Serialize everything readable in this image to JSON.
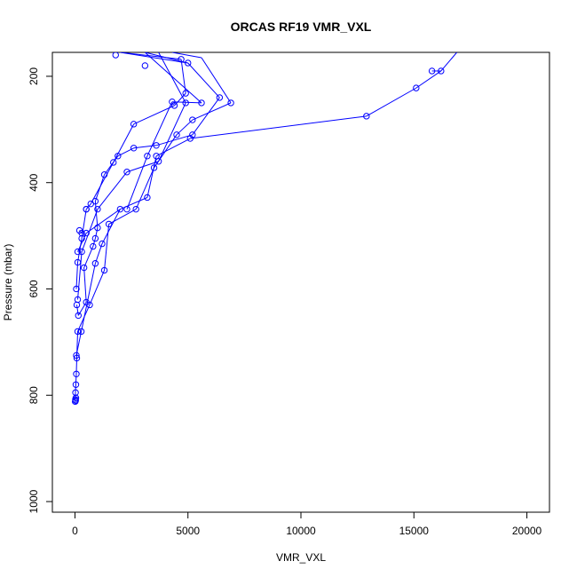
{
  "chart_data": {
    "type": "line",
    "title": "ORCAS RF19 VMR_VXL",
    "xlabel": "VMR_VXL",
    "ylabel": "Pressure (mbar)",
    "xlim": [
      -1000,
      21000
    ],
    "ylim": [
      1020,
      155
    ],
    "y_reversed": true,
    "grid": false,
    "x_ticks": [
      0,
      5000,
      10000,
      15000,
      20000
    ],
    "y_ticks": [
      200,
      400,
      600,
      800,
      1000
    ],
    "series_color": "#0000ff",
    "points": [
      [
        10,
        812
      ],
      [
        20,
        808
      ],
      [
        30,
        810
      ],
      [
        40,
        805
      ],
      [
        25,
        795
      ],
      [
        40,
        780
      ],
      [
        60,
        760
      ],
      [
        80,
        730
      ],
      [
        60,
        725
      ],
      [
        120,
        680
      ],
      [
        280,
        680
      ],
      [
        150,
        650
      ],
      [
        650,
        630
      ],
      [
        500,
        625
      ],
      [
        120,
        620
      ],
      [
        80,
        630
      ],
      [
        60,
        600
      ],
      [
        1300,
        565
      ],
      [
        900,
        552
      ],
      [
        400,
        560
      ],
      [
        120,
        550
      ],
      [
        300,
        530
      ],
      [
        120,
        530
      ],
      [
        800,
        520
      ],
      [
        1200,
        515
      ],
      [
        300,
        505
      ],
      [
        300,
        495
      ],
      [
        900,
        505
      ],
      [
        500,
        495
      ],
      [
        1500,
        478
      ],
      [
        1000,
        485
      ],
      [
        200,
        490
      ],
      [
        500,
        450
      ],
      [
        1000,
        450
      ],
      [
        2000,
        450
      ],
      [
        2700,
        450
      ],
      [
        3200,
        428
      ],
      [
        2300,
        450
      ],
      [
        500,
        450
      ],
      [
        900,
        435
      ],
      [
        700,
        440
      ],
      [
        1300,
        385
      ],
      [
        2300,
        380
      ],
      [
        3500,
        372
      ],
      [
        3200,
        350
      ],
      [
        1700,
        362
      ],
      [
        1900,
        350
      ],
      [
        3600,
        350
      ],
      [
        3700,
        360
      ],
      [
        2600,
        335
      ],
      [
        3600,
        330
      ],
      [
        4500,
        310
      ],
      [
        5200,
        310
      ],
      [
        5100,
        317
      ],
      [
        2600,
        290
      ],
      [
        5200,
        282
      ],
      [
        12900,
        275
      ],
      [
        4400,
        255
      ],
      [
        4900,
        250
      ],
      [
        4300,
        248
      ],
      [
        5600,
        250
      ],
      [
        6900,
        250
      ],
      [
        6400,
        240
      ],
      [
        4900,
        232
      ],
      [
        15100,
        222
      ],
      [
        15800,
        190
      ],
      [
        16200,
        190
      ],
      [
        5000,
        175
      ],
      [
        4700,
        168
      ],
      [
        3100,
        180
      ],
      [
        1800,
        160
      ]
    ],
    "segments": [
      [
        [
          10,
          812
        ],
        [
          20,
          795
        ]
      ],
      [
        [
          20,
          795
        ],
        [
          60,
          760
        ]
      ],
      [
        [
          60,
          760
        ],
        [
          80,
          730
        ]
      ],
      [
        [
          80,
          730
        ],
        [
          120,
          680
        ]
      ],
      [
        [
          120,
          680
        ],
        [
          650,
          630
        ]
      ],
      [
        [
          650,
          630
        ],
        [
          1300,
          565
        ]
      ],
      [
        [
          1300,
          565
        ],
        [
          1500,
          478
        ]
      ],
      [
        [
          1500,
          478
        ],
        [
          2700,
          450
        ]
      ],
      [
        [
          2700,
          450
        ],
        [
          3500,
          372
        ]
      ],
      [
        [
          3500,
          372
        ],
        [
          4500,
          310
        ]
      ],
      [
        [
          4500,
          310
        ],
        [
          5200,
          282
        ]
      ],
      [
        [
          5200,
          282
        ],
        [
          6900,
          250
        ]
      ],
      [
        [
          6900,
          250
        ],
        [
          5600,
          165
        ]
      ],
      [
        [
          5600,
          165
        ],
        [
          4300,
          155
        ]
      ],
      [
        [
          60,
          725
        ],
        [
          280,
          680
        ]
      ],
      [
        [
          280,
          680
        ],
        [
          900,
          552
        ]
      ],
      [
        [
          900,
          552
        ],
        [
          1200,
          515
        ]
      ],
      [
        [
          1200,
          515
        ],
        [
          2000,
          450
        ]
      ],
      [
        [
          2000,
          450
        ],
        [
          3200,
          428
        ]
      ],
      [
        [
          3200,
          428
        ],
        [
          3600,
          350
        ]
      ],
      [
        [
          3600,
          350
        ],
        [
          5100,
          317
        ]
      ],
      [
        [
          5100,
          317
        ],
        [
          12900,
          275
        ]
      ],
      [
        [
          12900,
          275
        ],
        [
          15100,
          222
        ]
      ],
      [
        [
          15100,
          222
        ],
        [
          16200,
          190
        ]
      ],
      [
        [
          16200,
          190
        ],
        [
          16900,
          155
        ]
      ],
      [
        [
          80,
          630
        ],
        [
          150,
          650
        ]
      ],
      [
        [
          150,
          650
        ],
        [
          500,
          625
        ]
      ],
      [
        [
          500,
          625
        ],
        [
          400,
          560
        ]
      ],
      [
        [
          400,
          560
        ],
        [
          800,
          520
        ]
      ],
      [
        [
          800,
          520
        ],
        [
          900,
          505
        ]
      ],
      [
        [
          900,
          505
        ],
        [
          1000,
          485
        ]
      ],
      [
        [
          1000,
          485
        ],
        [
          900,
          435
        ]
      ],
      [
        [
          900,
          435
        ],
        [
          1300,
          385
        ]
      ],
      [
        [
          1300,
          385
        ],
        [
          1900,
          350
        ]
      ],
      [
        [
          1900,
          350
        ],
        [
          2600,
          335
        ]
      ],
      [
        [
          2600,
          335
        ],
        [
          3600,
          330
        ]
      ],
      [
        [
          3600,
          330
        ],
        [
          5200,
          310
        ]
      ],
      [
        [
          5200,
          310
        ],
        [
          6400,
          240
        ]
      ],
      [
        [
          6400,
          240
        ],
        [
          5000,
          175
        ]
      ],
      [
        [
          5000,
          175
        ],
        [
          3100,
          155
        ]
      ],
      [
        [
          60,
          600
        ],
        [
          120,
          550
        ]
      ],
      [
        [
          120,
          550
        ],
        [
          300,
          505
        ]
      ],
      [
        [
          300,
          505
        ],
        [
          500,
          450
        ]
      ],
      [
        [
          500,
          450
        ],
        [
          700,
          440
        ]
      ],
      [
        [
          700,
          440
        ],
        [
          1700,
          362
        ]
      ],
      [
        [
          1700,
          362
        ],
        [
          2600,
          290
        ]
      ],
      [
        [
          2600,
          290
        ],
        [
          4400,
          255
        ]
      ],
      [
        [
          4400,
          255
        ],
        [
          4900,
          232
        ]
      ],
      [
        [
          4900,
          232
        ],
        [
          4700,
          168
        ]
      ],
      [
        [
          4700,
          168
        ],
        [
          2000,
          155
        ]
      ],
      [
        [
          120,
          620
        ],
        [
          300,
          530
        ]
      ],
      [
        [
          300,
          530
        ],
        [
          1000,
          450
        ]
      ],
      [
        [
          1000,
          450
        ],
        [
          2300,
          380
        ]
      ],
      [
        [
          2300,
          380
        ],
        [
          3700,
          360
        ]
      ],
      [
        [
          3700,
          360
        ],
        [
          4900,
          250
        ]
      ],
      [
        [
          4900,
          250
        ],
        [
          3700,
          155
        ]
      ],
      [
        [
          2300,
          450
        ],
        [
          3200,
          350
        ]
      ],
      [
        [
          3200,
          350
        ],
        [
          4300,
          248
        ]
      ],
      [
        [
          4300,
          248
        ],
        [
          5600,
          250
        ]
      ],
      [
        [
          5600,
          250
        ],
        [
          3100,
          155
        ]
      ],
      [
        [
          500,
          495
        ],
        [
          2000,
          450
        ]
      ],
      [
        [
          120,
          530
        ],
        [
          500,
          495
        ]
      ],
      [
        [
          200,
          490
        ],
        [
          300,
          495
        ]
      ],
      [
        [
          15800,
          190
        ],
        [
          16200,
          190
        ]
      ],
      [
        [
          5000,
          175
        ],
        [
          2000,
          155
        ]
      ]
    ]
  }
}
